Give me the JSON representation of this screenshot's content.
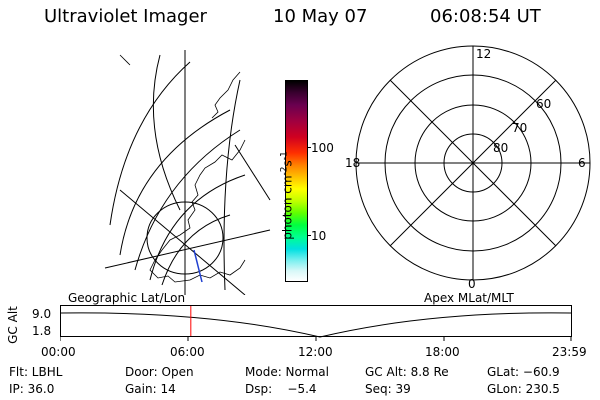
{
  "header": {
    "instrument": "Ultraviolet Imager",
    "date": "10 May 07",
    "time": "06:08:54 UT"
  },
  "colorbar": {
    "unit_label": "photon cm",
    "unit_exp1": "-2",
    "unit_s": "s",
    "unit_exp2": "-1",
    "ticks": [
      {
        "label": "100",
        "value": 100
      },
      {
        "label": "10",
        "value": 10
      }
    ],
    "colors": [
      "#000000",
      "#2a0020",
      "#4a0040",
      "#700060",
      "#a00040",
      "#d00020",
      "#ff3000",
      "#ff8000",
      "#ffc000",
      "#ffff00",
      "#c0ff00",
      "#60ff00",
      "#00ff40",
      "#00ff90",
      "#00e0e0",
      "#80f0f0",
      "#d8f8f8",
      "#ffffff"
    ]
  },
  "polar_plot": {
    "labels": {
      "top": "12",
      "left": "18",
      "right": "6",
      "bottom": "0"
    },
    "lat_labels": [
      "60",
      "70",
      "80"
    ]
  },
  "timeline": {
    "ylabel": "GC Alt",
    "yticks": [
      "9.0",
      "1.8"
    ],
    "left_title": "Geographic Lat/Lon",
    "right_title": "Apex MLat/MLT",
    "xticks": [
      "00:00",
      "06:00",
      "12:00",
      "18:00",
      "23:59"
    ],
    "marker_fraction": 0.256,
    "marker_color": "#ff0000"
  },
  "info": {
    "flt": "Flt: LBHL",
    "door": "Door: Open",
    "mode": "Mode: Normal",
    "gc_alt": "GC Alt: 8.8 Re",
    "glat": "GLat: −60.9",
    "ip": "IP: 36.0",
    "gain": "Gain: 14",
    "dsp": "Dsp:    −5.4",
    "seq": "Seq: 39",
    "glon": "GLon: 230.5"
  }
}
